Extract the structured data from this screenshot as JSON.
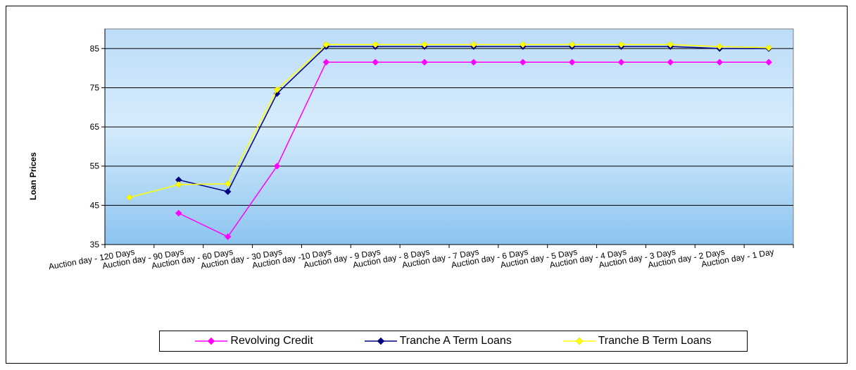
{
  "chart_data": {
    "type": "line",
    "title": "",
    "xlabel": "",
    "ylabel": "Loan Prices",
    "ylim": [
      35,
      90
    ],
    "yticks": [
      35,
      45,
      55,
      65,
      75,
      85
    ],
    "grid": true,
    "legend_position": "bottom",
    "categories": [
      "Auction day - 120 Days",
      "Auction day - 90 Days",
      "Auction day - 60 Days",
      "Auction day - 30 Days",
      "Auction day -10 Days",
      "Auction day - 9 Days",
      "Auction day - 8 Days",
      "Auction day - 7 Days",
      "Auction day - 6 Days",
      "Auction day - 5 Days",
      "Auction day - 4 Days",
      "Auction day - 3 Days",
      "Auction day - 2 Days",
      "Auction day - 1 Day"
    ],
    "series": [
      {
        "name": "Revolving Credit",
        "color": "#ff00ff",
        "values": [
          null,
          43,
          37,
          55,
          81.5,
          81.5,
          81.5,
          81.5,
          81.5,
          81.5,
          81.5,
          81.5,
          81.5,
          81.5
        ]
      },
      {
        "name": "Tranche A Term Loans",
        "color": "#000080",
        "values": [
          null,
          51.5,
          48.5,
          73.5,
          85.5,
          85.5,
          85.5,
          85.5,
          85.5,
          85.5,
          85.5,
          85.5,
          85,
          85
        ]
      },
      {
        "name": "Tranche B Term Loans",
        "color": "#ffff00",
        "values": [
          47,
          50.3,
          50.5,
          74.5,
          86,
          86,
          86,
          86,
          86,
          86,
          86,
          86,
          85.5,
          85.2
        ]
      }
    ],
    "plot_background": {
      "top": "#bcdcf8",
      "middle": "#d6ecfc",
      "bottom": "#8cc4f0"
    }
  }
}
